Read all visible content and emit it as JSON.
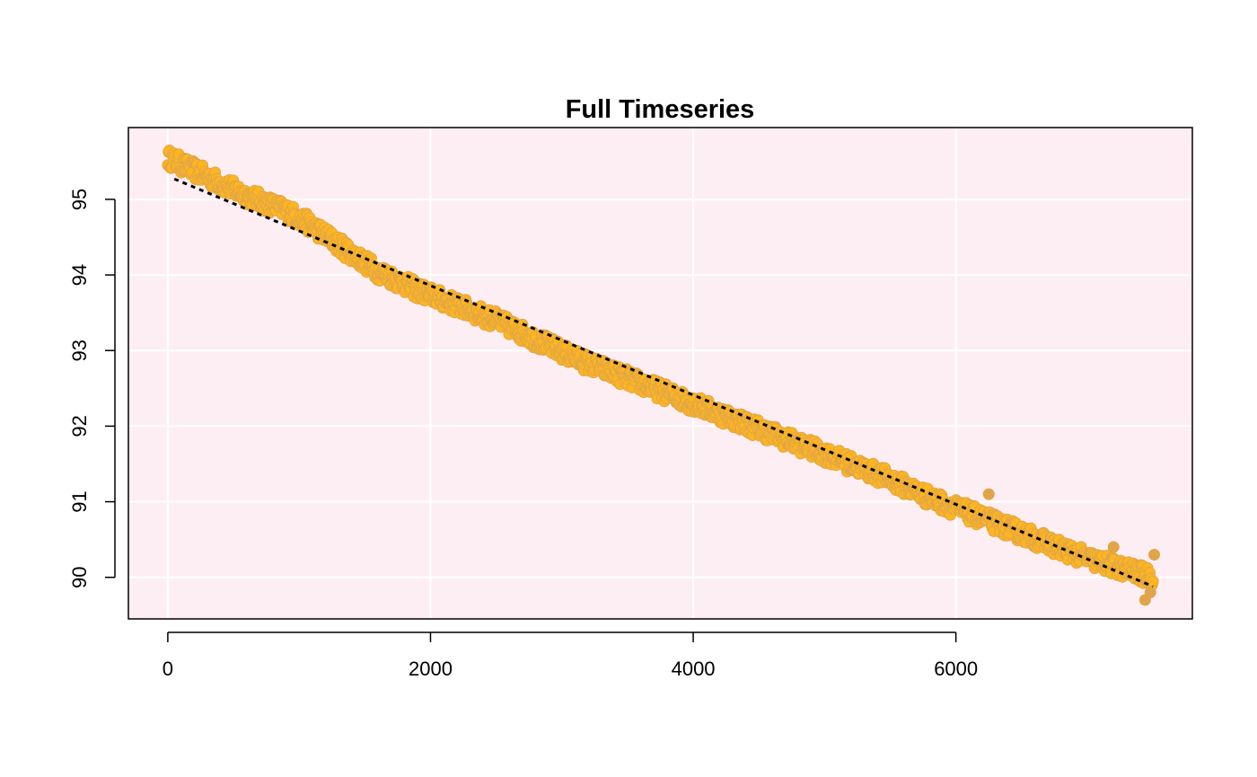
{
  "chart_data": {
    "type": "scatter",
    "title": "Full Timeseries",
    "xlabel": "",
    "ylabel": "",
    "xlim": [
      -300,
      7800
    ],
    "ylim": [
      89.45,
      95.95
    ],
    "x_ticks": [
      0,
      2000,
      4000,
      6000
    ],
    "y_ticks": [
      90,
      91,
      92,
      93,
      94,
      95
    ],
    "grid": true,
    "legend": "none",
    "colors": {
      "panel_background": "#FDEEF4",
      "grid": "#FFFFFF",
      "points": "#FDB520",
      "point_edge": "#E0A548",
      "trend_line": "#000000"
    },
    "series": [
      {
        "kind": "points",
        "x_range": [
          0,
          7500
        ],
        "n_points": 7500,
        "profile_x": [
          0,
          300,
          600,
          900,
          1100,
          1300,
          1600,
          1900,
          2200,
          2500,
          2800,
          3100,
          3400,
          3700,
          4000,
          4300,
          4600,
          4900,
          5200,
          5500,
          5800,
          6100,
          6400,
          6700,
          7000,
          7300,
          7500
        ],
        "profile_y": [
          95.55,
          95.3,
          95.05,
          94.85,
          94.65,
          94.4,
          94.05,
          93.8,
          93.6,
          93.4,
          93.15,
          92.9,
          92.7,
          92.5,
          92.3,
          92.1,
          91.9,
          91.7,
          91.5,
          91.3,
          91.05,
          90.85,
          90.65,
          90.45,
          90.25,
          90.1,
          90.0
        ],
        "noise_amplitude": 0.12
      },
      {
        "kind": "trend-line",
        "style": "dashed",
        "x": [
          50,
          7500
        ],
        "y": [
          95.27,
          89.88
        ]
      }
    ]
  }
}
